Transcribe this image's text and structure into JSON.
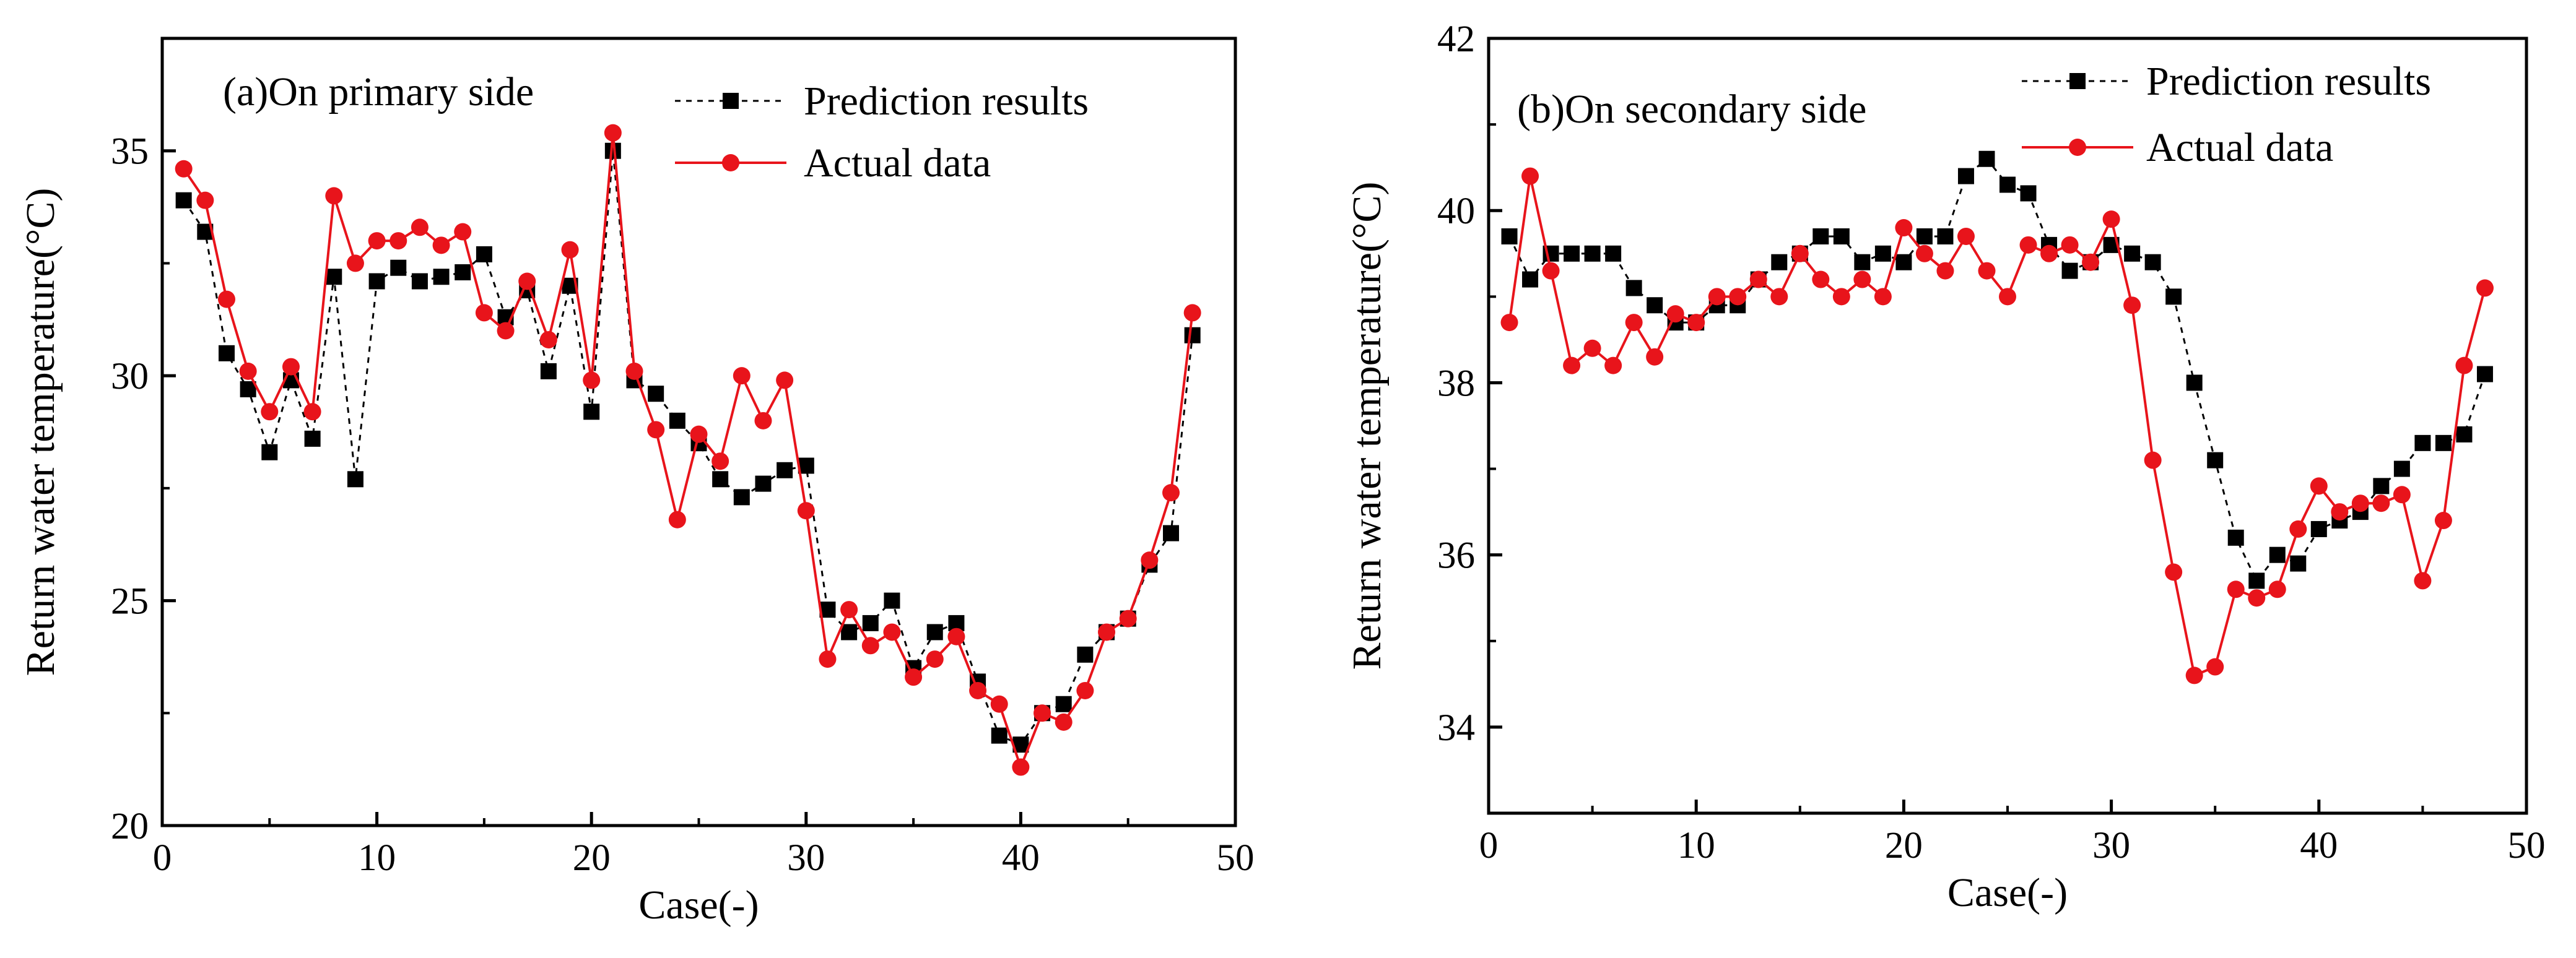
{
  "chart_data": [
    {
      "type": "line",
      "title": "(a)On primary side",
      "xlabel": "Case(-)",
      "ylabel": "Return water temperature(°C)",
      "xlim": [
        0,
        50
      ],
      "ylim": [
        20,
        37.5
      ],
      "xticks": [
        0,
        10,
        20,
        30,
        40,
        50
      ],
      "yticks": [
        20,
        25,
        30,
        35
      ],
      "grid": false,
      "legend_position": "top-right",
      "series": [
        {
          "name": "Prediction results",
          "marker": "square",
          "line_style": "dashed",
          "color": "#000000",
          "x": [
            1,
            2,
            3,
            4,
            5,
            6,
            7,
            8,
            9,
            10,
            11,
            12,
            13,
            14,
            15,
            16,
            17,
            18,
            19,
            20,
            21,
            22,
            23,
            24,
            25,
            26,
            27,
            28,
            29,
            30,
            31,
            32,
            33,
            34,
            35,
            36,
            37,
            38,
            39,
            40,
            41,
            42,
            43,
            44,
            45,
            46,
            47,
            48
          ],
          "values": [
            33.9,
            33.2,
            30.5,
            29.7,
            28.3,
            29.9,
            28.6,
            32.2,
            27.7,
            32.1,
            32.4,
            32.1,
            32.2,
            32.3,
            32.7,
            31.3,
            31.9,
            30.1,
            32.0,
            29.2,
            35.0,
            29.9,
            29.6,
            29.0,
            28.5,
            27.7,
            27.3,
            27.6,
            27.9,
            28.0,
            24.8,
            24.3,
            24.5,
            25.0,
            23.5,
            24.3,
            24.5,
            23.2,
            22.0,
            21.8,
            22.5,
            22.7,
            23.8,
            24.3,
            24.6,
            25.8,
            26.5,
            30.9
          ]
        },
        {
          "name": "Actual data",
          "marker": "circle",
          "line_style": "solid",
          "color": "#e8141b",
          "x": [
            1,
            2,
            3,
            4,
            5,
            6,
            7,
            8,
            9,
            10,
            11,
            12,
            13,
            14,
            15,
            16,
            17,
            18,
            19,
            20,
            21,
            22,
            23,
            24,
            25,
            26,
            27,
            28,
            29,
            30,
            31,
            32,
            33,
            34,
            35,
            36,
            37,
            38,
            39,
            40,
            41,
            42,
            43,
            44,
            45,
            46,
            47,
            48
          ],
          "values": [
            34.6,
            33.9,
            31.7,
            30.1,
            29.2,
            30.2,
            29.2,
            34.0,
            32.5,
            33.0,
            33.0,
            33.3,
            32.9,
            33.2,
            31.4,
            31.0,
            32.1,
            30.8,
            32.8,
            29.9,
            35.4,
            30.1,
            28.8,
            26.8,
            28.7,
            28.1,
            30.0,
            29.0,
            29.9,
            27.0,
            23.7,
            24.8,
            24.0,
            24.3,
            23.3,
            23.7,
            24.2,
            23.0,
            22.7,
            21.3,
            22.5,
            22.3,
            23.0,
            24.3,
            24.6,
            25.9,
            27.4,
            31.4
          ]
        }
      ]
    },
    {
      "type": "line",
      "title": "(b)On secondary side",
      "xlabel": "Case(-)",
      "ylabel": "Return water temperature(°C)",
      "xlim": [
        0,
        50
      ],
      "ylim": [
        33,
        42
      ],
      "xticks": [
        0,
        10,
        20,
        30,
        40,
        50
      ],
      "yticks": [
        34,
        36,
        38,
        40,
        42
      ],
      "grid": false,
      "legend_position": "top-right",
      "series": [
        {
          "name": "Prediction results",
          "marker": "square",
          "line_style": "dashed",
          "color": "#000000",
          "x": [
            1,
            2,
            3,
            4,
            5,
            6,
            7,
            8,
            9,
            10,
            11,
            12,
            13,
            14,
            15,
            16,
            17,
            18,
            19,
            20,
            21,
            22,
            23,
            24,
            25,
            26,
            27,
            28,
            29,
            30,
            31,
            32,
            33,
            34,
            35,
            36,
            37,
            38,
            39,
            40,
            41,
            42,
            43,
            44,
            45,
            46,
            47,
            48
          ],
          "values": [
            39.7,
            39.2,
            39.5,
            39.5,
            39.5,
            39.5,
            39.1,
            38.9,
            38.7,
            38.7,
            38.9,
            38.9,
            39.2,
            39.4,
            39.5,
            39.7,
            39.7,
            39.4,
            39.5,
            39.4,
            39.7,
            39.7,
            40.4,
            40.6,
            40.3,
            40.2,
            39.6,
            39.3,
            39.4,
            39.6,
            39.5,
            39.4,
            39.0,
            38.0,
            37.1,
            36.2,
            35.7,
            36.0,
            35.9,
            36.3,
            36.4,
            36.5,
            36.8,
            37.0,
            37.3,
            37.3,
            37.4,
            38.1
          ]
        },
        {
          "name": "Actual data",
          "marker": "circle",
          "line_style": "solid",
          "color": "#e8141b",
          "x": [
            1,
            2,
            3,
            4,
            5,
            6,
            7,
            8,
            9,
            10,
            11,
            12,
            13,
            14,
            15,
            16,
            17,
            18,
            19,
            20,
            21,
            22,
            23,
            24,
            25,
            26,
            27,
            28,
            29,
            30,
            31,
            32,
            33,
            34,
            35,
            36,
            37,
            38,
            39,
            40,
            41,
            42,
            43,
            44,
            45,
            46,
            47,
            48
          ],
          "values": [
            38.7,
            40.4,
            39.3,
            38.2,
            38.4,
            38.2,
            38.7,
            38.3,
            38.8,
            38.7,
            39.0,
            39.0,
            39.2,
            39.0,
            39.5,
            39.2,
            39.0,
            39.2,
            39.0,
            39.8,
            39.5,
            39.3,
            39.7,
            39.3,
            39.0,
            39.6,
            39.5,
            39.6,
            39.4,
            39.9,
            38.9,
            37.1,
            35.8,
            34.6,
            34.7,
            35.6,
            35.5,
            35.6,
            36.3,
            36.8,
            36.5,
            36.6,
            36.6,
            36.7,
            35.7,
            36.4,
            38.2,
            39.1
          ]
        }
      ]
    }
  ]
}
